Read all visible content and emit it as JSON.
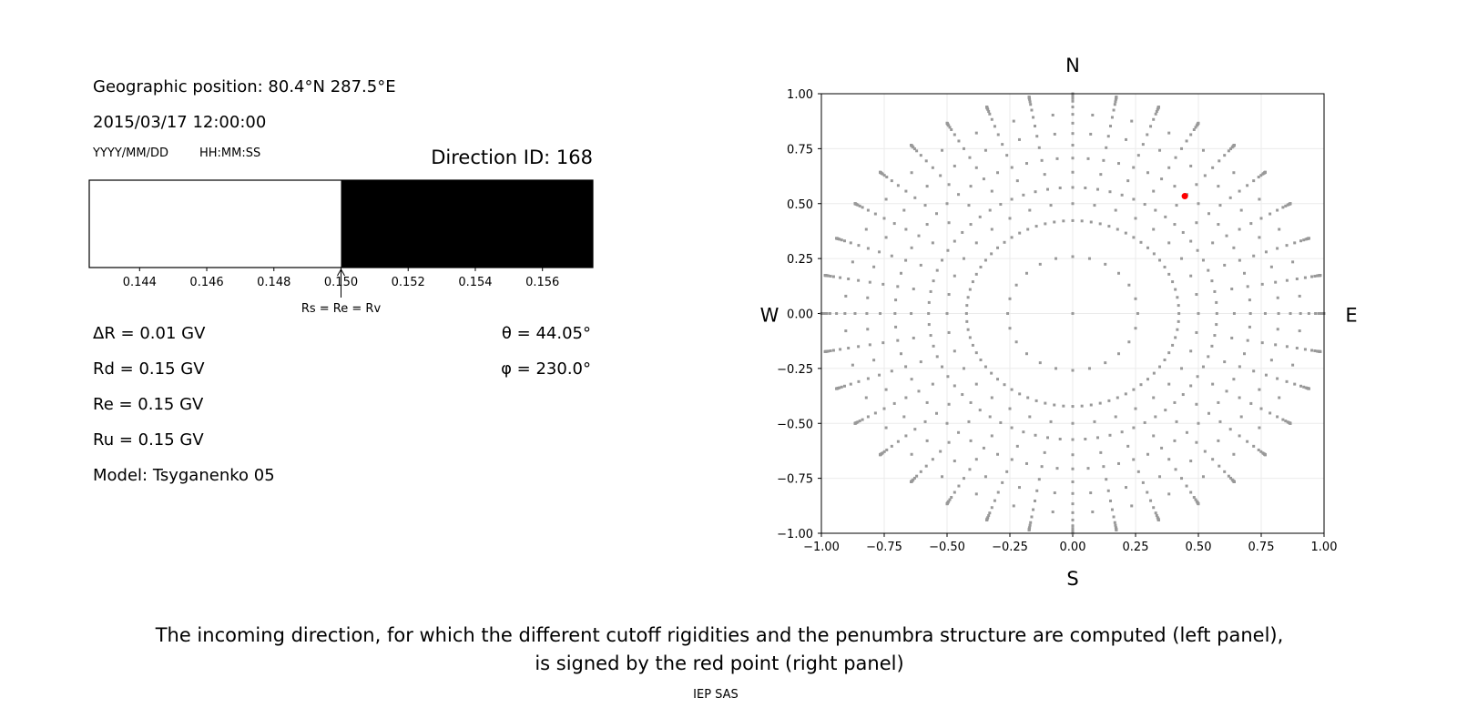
{
  "left_panel": {
    "geo_position": "Geographic position: 80.4°N 287.5°E",
    "datetime": "2015/03/17 12:00:00",
    "date_format": "YYYY/MM/DD",
    "time_format": "HH:MM:SS",
    "direction_id": "Direction ID: 168",
    "delta_r": "ΔR = 0.01 GV",
    "rd": "Rd = 0.15 GV",
    "re": "Re = 0.15 GV",
    "ru": "Ru = 0.15 GV",
    "model": "Model: Tsyganenko 05",
    "theta": "θ = 44.05°",
    "phi": "φ = 230.0°",
    "arrow_label": "Rs = Re = Rv"
  },
  "chart_data": [
    {
      "type": "bar",
      "description_role": "penumbra",
      "xlim": [
        0.1425,
        0.1575
      ],
      "xticks": [
        "0.144",
        "0.146",
        "0.148",
        "0.150",
        "0.152",
        "0.154",
        "0.156"
      ],
      "tick_values": [
        0.144,
        0.146,
        0.148,
        0.15,
        0.152,
        0.154,
        0.156
      ],
      "segments": [
        {
          "from": 0.1425,
          "to": 0.15,
          "state": "allowed",
          "color": "#ffffff"
        },
        {
          "from": 0.15,
          "to": 0.1575,
          "state": "forbidden",
          "color": "#000000"
        }
      ],
      "annotation": {
        "x": 0.15,
        "text_key": "left_panel.arrow_label"
      }
    },
    {
      "type": "scatter",
      "xlim": [
        -1,
        1
      ],
      "ylim": [
        -1,
        1
      ],
      "xticks": [
        "−1.00",
        "−0.75",
        "−0.50",
        "−0.25",
        "0.00",
        "0.25",
        "0.50",
        "0.75",
        "1.00"
      ],
      "yticks": [
        "1.00",
        "0.75",
        "0.50",
        "0.25",
        "0.00",
        "−0.25",
        "−0.50",
        "−0.75",
        "−1.00"
      ],
      "grid": true,
      "compass": {
        "top": "N",
        "bottom": "S",
        "left": "W",
        "right": "E"
      },
      "point_color": "#999999",
      "highlight_color": "#ff0000",
      "directions": {
        "ring_zenith_deg": 15,
        "ring_count": 24,
        "spoke_azimuth_step_deg": 10,
        "spoke_zenith_deg": [
          25,
          30,
          35,
          40,
          45,
          50,
          55,
          60,
          65,
          70,
          75,
          78,
          81,
          83,
          85,
          86,
          87,
          88,
          89,
          90
        ],
        "inter_spoke_zenith_deg": [
          25,
          35,
          45,
          55,
          65
        ]
      },
      "highlight": {
        "x": 0.446,
        "y": 0.534
      }
    }
  ],
  "caption": {
    "line1": "The incoming direction, for which the different cutoff rigidities and the penumbra structure are computed (left panel),",
    "line2": "is signed by the red point (right panel)",
    "credit": "IEP SAS"
  }
}
